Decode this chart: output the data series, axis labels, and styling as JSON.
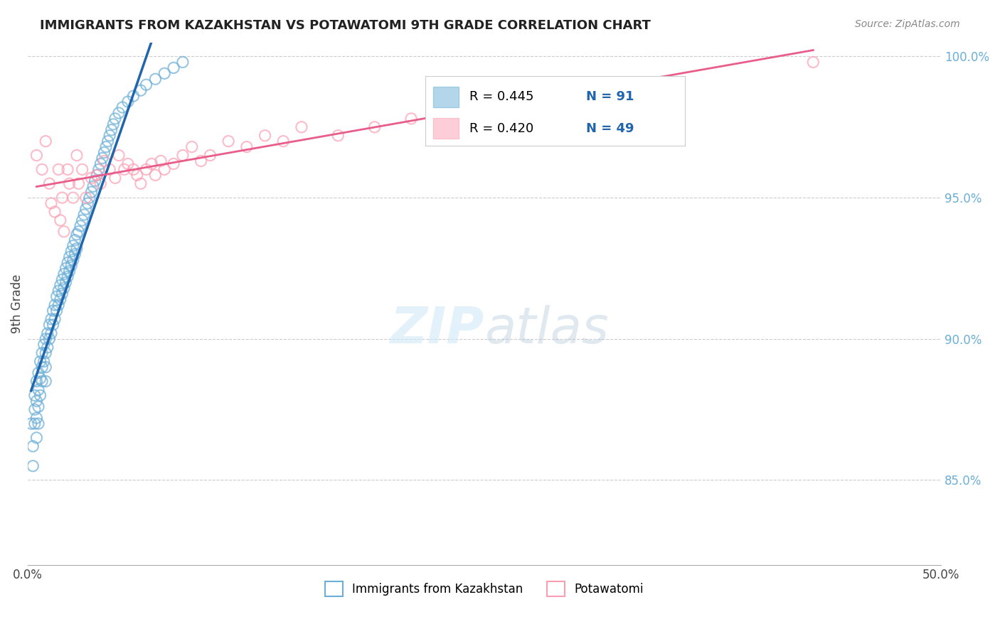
{
  "title": "IMMIGRANTS FROM KAZAKHSTAN VS POTAWATOMI 9TH GRADE CORRELATION CHART",
  "source_text": "Source: ZipAtlas.com",
  "xlabel": "",
  "ylabel": "9th Grade",
  "xlim": [
    0.0,
    0.5
  ],
  "ylim": [
    0.82,
    1.005
  ],
  "xtick_labels": [
    "0.0%",
    "50.0%"
  ],
  "xtick_positions": [
    0.0,
    0.5
  ],
  "ytick_labels": [
    "85.0%",
    "90.0%",
    "95.0%",
    "100.0%"
  ],
  "ytick_positions": [
    0.85,
    0.9,
    0.95,
    1.0
  ],
  "blue_color": "#6baed6",
  "pink_color": "#fc9eb3",
  "blue_line_color": "#2166ac",
  "pink_line_color": "#e85d8a",
  "legend_R_blue": "R = 0.445",
  "legend_N_blue": "N = 91",
  "legend_R_pink": "R = 0.420",
  "legend_N_pink": "N = 49",
  "blue_label": "Immigrants from Kazakhstan",
  "pink_label": "Potawatomi",
  "grid_color": "#cccccc",
  "background_color": "#ffffff",
  "blue_scatter_x": [
    0.002,
    0.003,
    0.003,
    0.004,
    0.004,
    0.004,
    0.005,
    0.005,
    0.005,
    0.005,
    0.006,
    0.006,
    0.006,
    0.006,
    0.007,
    0.007,
    0.007,
    0.008,
    0.008,
    0.008,
    0.009,
    0.009,
    0.01,
    0.01,
    0.01,
    0.01,
    0.011,
    0.011,
    0.012,
    0.012,
    0.013,
    0.013,
    0.014,
    0.014,
    0.015,
    0.015,
    0.016,
    0.016,
    0.017,
    0.017,
    0.018,
    0.018,
    0.019,
    0.019,
    0.02,
    0.02,
    0.021,
    0.021,
    0.022,
    0.022,
    0.023,
    0.023,
    0.024,
    0.024,
    0.025,
    0.025,
    0.026,
    0.026,
    0.027,
    0.027,
    0.028,
    0.029,
    0.03,
    0.031,
    0.032,
    0.033,
    0.034,
    0.035,
    0.036,
    0.037,
    0.038,
    0.039,
    0.04,
    0.041,
    0.042,
    0.043,
    0.044,
    0.045,
    0.046,
    0.047,
    0.048,
    0.05,
    0.052,
    0.055,
    0.058,
    0.062,
    0.065,
    0.07,
    0.075,
    0.08,
    0.085
  ],
  "blue_scatter_y": [
    0.87,
    0.855,
    0.862,
    0.88,
    0.875,
    0.87,
    0.885,
    0.878,
    0.872,
    0.865,
    0.888,
    0.882,
    0.876,
    0.87,
    0.892,
    0.886,
    0.88,
    0.895,
    0.89,
    0.885,
    0.898,
    0.892,
    0.9,
    0.895,
    0.89,
    0.885,
    0.902,
    0.897,
    0.905,
    0.9,
    0.907,
    0.902,
    0.91,
    0.905,
    0.912,
    0.907,
    0.915,
    0.91,
    0.917,
    0.912,
    0.919,
    0.914,
    0.921,
    0.916,
    0.923,
    0.918,
    0.925,
    0.92,
    0.927,
    0.922,
    0.929,
    0.924,
    0.931,
    0.926,
    0.933,
    0.928,
    0.935,
    0.93,
    0.937,
    0.932,
    0.938,
    0.94,
    0.942,
    0.944,
    0.946,
    0.948,
    0.95,
    0.952,
    0.954,
    0.956,
    0.958,
    0.96,
    0.962,
    0.964,
    0.966,
    0.968,
    0.97,
    0.972,
    0.974,
    0.976,
    0.978,
    0.98,
    0.982,
    0.984,
    0.986,
    0.988,
    0.99,
    0.992,
    0.994,
    0.996,
    0.998
  ],
  "pink_scatter_x": [
    0.005,
    0.008,
    0.01,
    0.012,
    0.013,
    0.015,
    0.017,
    0.018,
    0.019,
    0.02,
    0.022,
    0.023,
    0.025,
    0.027,
    0.028,
    0.03,
    0.032,
    0.035,
    0.038,
    0.04,
    0.042,
    0.045,
    0.048,
    0.05,
    0.053,
    0.055,
    0.058,
    0.06,
    0.062,
    0.065,
    0.068,
    0.07,
    0.073,
    0.075,
    0.08,
    0.085,
    0.09,
    0.095,
    0.1,
    0.11,
    0.12,
    0.13,
    0.14,
    0.15,
    0.17,
    0.19,
    0.21,
    0.27,
    0.43
  ],
  "pink_scatter_y": [
    0.965,
    0.96,
    0.97,
    0.955,
    0.948,
    0.945,
    0.96,
    0.942,
    0.95,
    0.938,
    0.96,
    0.955,
    0.95,
    0.965,
    0.955,
    0.96,
    0.95,
    0.957,
    0.958,
    0.955,
    0.963,
    0.96,
    0.957,
    0.965,
    0.96,
    0.962,
    0.96,
    0.958,
    0.955,
    0.96,
    0.962,
    0.958,
    0.963,
    0.96,
    0.962,
    0.965,
    0.968,
    0.963,
    0.965,
    0.97,
    0.968,
    0.972,
    0.97,
    0.975,
    0.972,
    0.975,
    0.978,
    0.985,
    0.998
  ]
}
